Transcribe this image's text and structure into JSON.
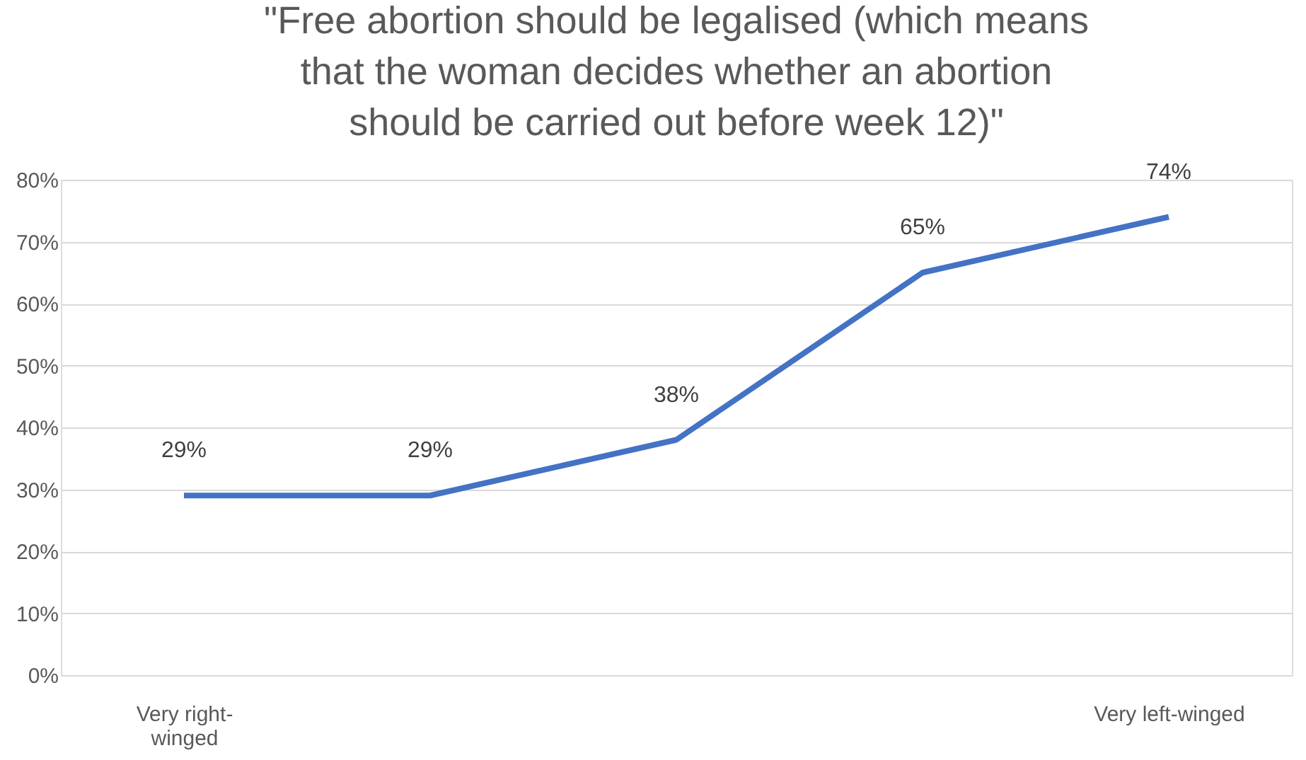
{
  "chart_data": {
    "type": "line",
    "title": "\"Free abortion should be legalised (which means that the woman decides whether an abortion should be carried out before week 12)\"",
    "categories": [
      "Very right-winged",
      null,
      null,
      null,
      "Very left-winged"
    ],
    "series": [
      {
        "color": "#4472c4",
        "values": [
          29,
          29,
          38,
          65,
          74
        ],
        "value_labels": [
          "29%",
          "29%",
          "38%",
          "65%",
          "74%"
        ]
      }
    ],
    "ylim": [
      0,
      80
    ],
    "yticks": [
      {
        "value": 0,
        "label": "0%"
      },
      {
        "value": 10,
        "label": "10%"
      },
      {
        "value": 20,
        "label": "20%"
      },
      {
        "value": 30,
        "label": "30%"
      },
      {
        "value": 40,
        "label": "40%"
      },
      {
        "value": 50,
        "label": "50%"
      },
      {
        "value": 60,
        "label": "60%"
      },
      {
        "value": 70,
        "label": "70%"
      },
      {
        "value": 80,
        "label": "80%"
      }
    ],
    "grid": "y",
    "marker": "none",
    "line_style": "solid"
  }
}
